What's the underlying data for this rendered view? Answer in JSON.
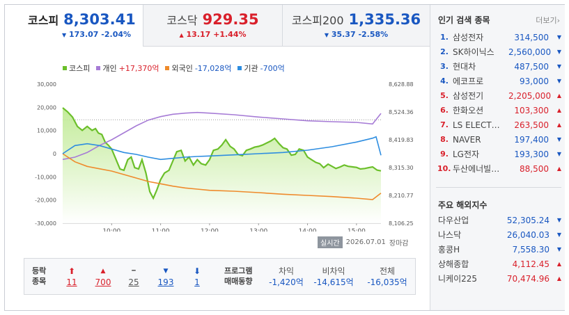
{
  "tabs": [
    {
      "name": "코스피",
      "value": "8,303.41",
      "arrow": "▼",
      "change": "173.07",
      "pct": "-2.04%",
      "color": "#1957c1"
    },
    {
      "name": "코스닥",
      "value": "929.35",
      "arrow": "▲",
      "change": "13.17",
      "pct": "+1.44%",
      "color": "#d9202b"
    },
    {
      "name": "코스피200",
      "value": "1,335.36",
      "arrow": "▼",
      "change": "35.37",
      "pct": "-2.58%",
      "color": "#1957c1"
    }
  ],
  "legend": [
    {
      "label": "코스피",
      "value": "",
      "color": "#6bbf2a"
    },
    {
      "label": "개인",
      "value": "+17,370억",
      "color": "#a67bd6",
      "value_color": "#d9202b"
    },
    {
      "label": "외국인",
      "value": "-17,028억",
      "color": "#ef8a2b",
      "value_color": "#1957c1"
    },
    {
      "label": "기관",
      "value": "-700억",
      "color": "#2d8de0",
      "value_color": "#1957c1"
    }
  ],
  "chart_data": {
    "type": "line",
    "y_left_ticks": [
      "30,000",
      "20,000",
      "10,000",
      "0",
      "-10,000",
      "-20,000",
      "-30,000"
    ],
    "y_left_range": [
      -30000,
      30000
    ],
    "y_right_ticks": [
      "8,628.88",
      "8,524.36",
      "8,419.83",
      "8,315.30",
      "8,210.77",
      "8,106.25"
    ],
    "y_right_range": [
      8106.25,
      8628.88
    ],
    "x_ticks": [
      "10:00",
      "11:00",
      "12:00",
      "13:00",
      "14:00",
      "15:00"
    ],
    "x_range_hours": [
      9.0,
      15.5
    ],
    "x_tick_hours": [
      10,
      11,
      12,
      13,
      14,
      15
    ],
    "reference_line_right": 8495,
    "series": [
      {
        "name": "코스피",
        "axis": "right",
        "color": "#6bbf2a",
        "x": [
          9.0,
          9.1,
          9.2,
          9.3,
          9.4,
          9.5,
          9.6,
          9.67,
          9.73,
          9.8,
          9.87,
          9.93,
          10.0,
          10.08,
          10.17,
          10.25,
          10.33,
          10.4,
          10.47,
          10.55,
          10.62,
          10.7,
          10.78,
          10.85,
          10.92,
          11.0,
          11.08,
          11.17,
          11.25,
          11.33,
          11.42,
          11.5,
          11.58,
          11.67,
          11.75,
          11.83,
          11.92,
          12.0,
          12.08,
          12.17,
          12.25,
          12.33,
          12.42,
          12.5,
          12.58,
          12.67,
          12.75,
          12.83,
          12.92,
          13.0,
          13.08,
          13.17,
          13.25,
          13.33,
          13.42,
          13.5,
          13.58,
          13.67,
          13.75,
          13.83,
          13.92,
          14.0,
          14.08,
          14.17,
          14.25,
          14.33,
          14.42,
          14.5,
          14.58,
          14.67,
          14.75,
          14.83,
          14.92,
          15.0,
          15.08,
          15.17,
          15.25,
          15.33,
          15.42,
          15.5
        ],
        "y": [
          8540,
          8525,
          8505,
          8470,
          8455,
          8470,
          8455,
          8462,
          8445,
          8440,
          8410,
          8400,
          8385,
          8350,
          8310,
          8305,
          8345,
          8355,
          8315,
          8310,
          8345,
          8295,
          8225,
          8200,
          8230,
          8270,
          8295,
          8305,
          8340,
          8375,
          8380,
          8340,
          8355,
          8325,
          8345,
          8330,
          8325,
          8345,
          8380,
          8385,
          8400,
          8420,
          8395,
          8385,
          8365,
          8360,
          8380,
          8385,
          8392,
          8395,
          8400,
          8408,
          8415,
          8425,
          8405,
          8390,
          8385,
          8362,
          8365,
          8385,
          8380,
          8355,
          8345,
          8335,
          8330,
          8315,
          8328,
          8320,
          8312,
          8318,
          8325,
          8320,
          8318,
          8316,
          8310,
          8312,
          8315,
          8318,
          8306,
          8303
        ]
      },
      {
        "name": "개인",
        "axis": "left",
        "color": "#a67bd6",
        "x": [
          9.0,
          9.25,
          9.5,
          9.75,
          10.0,
          10.25,
          10.5,
          10.75,
          11.0,
          11.25,
          11.5,
          11.75,
          12.0,
          12.5,
          13.0,
          13.5,
          14.0,
          14.5,
          15.0,
          15.33,
          15.5
        ],
        "y": [
          -2500,
          -1500,
          500,
          3500,
          6000,
          9000,
          12000,
          14500,
          16000,
          17000,
          17500,
          17800,
          17500,
          16800,
          15800,
          15000,
          14200,
          13800,
          13500,
          12800,
          17370
        ]
      },
      {
        "name": "외국인",
        "axis": "left",
        "color": "#ef8a2b",
        "x": [
          9.0,
          9.25,
          9.5,
          9.75,
          10.0,
          10.25,
          10.5,
          10.75,
          11.0,
          11.25,
          11.5,
          11.75,
          12.0,
          12.5,
          13.0,
          13.5,
          14.0,
          14.5,
          15.0,
          15.33,
          15.5
        ],
        "y": [
          0,
          -3500,
          -5500,
          -6500,
          -7500,
          -9000,
          -10500,
          -12000,
          -13000,
          -14000,
          -14800,
          -15300,
          -15800,
          -16200,
          -16800,
          -17500,
          -18000,
          -18500,
          -19200,
          -19800,
          -17028
        ]
      },
      {
        "name": "기관",
        "axis": "left",
        "color": "#2d8de0",
        "x": [
          9.0,
          9.25,
          9.5,
          9.75,
          10.0,
          10.25,
          10.5,
          10.75,
          11.0,
          11.25,
          11.5,
          11.75,
          12.0,
          12.5,
          13.0,
          13.5,
          14.0,
          14.5,
          15.0,
          15.33,
          15.4,
          15.5
        ],
        "y": [
          0,
          3500,
          4300,
          3500,
          2000,
          500,
          -300,
          -1500,
          -2500,
          -2000,
          -1500,
          -1200,
          -1000,
          -500,
          0,
          500,
          1500,
          3000,
          5000,
          6700,
          7300,
          -700
        ]
      }
    ]
  },
  "stamp": {
    "badge": "실시간",
    "date": "2026.07.01",
    "status": "장마감"
  },
  "breadth": {
    "header_line1": "등락",
    "header_line2": "종목",
    "items": [
      {
        "arrow": "⬆",
        "count": "11",
        "color": "#d9202b"
      },
      {
        "arrow": "▲",
        "count": "700",
        "color": "#d9202b"
      },
      {
        "arrow": "━",
        "count": "25",
        "color": "#555555"
      },
      {
        "arrow": "▼",
        "count": "193",
        "color": "#1957c1"
      },
      {
        "arrow": "⬇",
        "count": "1",
        "color": "#1957c1"
      }
    ]
  },
  "program": {
    "header_line1": "프로그램",
    "header_line2": "매매동향",
    "items": [
      {
        "label": "차익",
        "value": "-1,420억"
      },
      {
        "label": "비차익",
        "value": "-14,615억"
      },
      {
        "label": "전체",
        "value": "-16,035억"
      }
    ]
  },
  "popular": {
    "title": "인기 검색 종목",
    "more": "더보기",
    "items": [
      {
        "rank": "1.",
        "name": "삼성전자",
        "price": "314,500",
        "dir": "down"
      },
      {
        "rank": "2.",
        "name": "SK하이닉스",
        "price": "2,560,000",
        "dir": "down"
      },
      {
        "rank": "3.",
        "name": "현대차",
        "price": "487,500",
        "dir": "down"
      },
      {
        "rank": "4.",
        "name": "에코프로",
        "price": "93,000",
        "dir": "down"
      },
      {
        "rank": "5.",
        "name": "삼성전기",
        "price": "2,205,000",
        "dir": "up"
      },
      {
        "rank": "6.",
        "name": "한화오션",
        "price": "103,300",
        "dir": "up"
      },
      {
        "rank": "7.",
        "name": "LS ELECT…",
        "price": "263,500",
        "dir": "up"
      },
      {
        "rank": "8.",
        "name": "NAVER",
        "price": "197,400",
        "dir": "down"
      },
      {
        "rank": "9.",
        "name": "LG전자",
        "price": "193,300",
        "dir": "down"
      },
      {
        "rank": "10.",
        "name": "두산에너빌…",
        "price": "88,500",
        "dir": "up"
      }
    ]
  },
  "world": {
    "title": "주요 해외지수",
    "items": [
      {
        "name": "다우산업",
        "value": "52,305.24",
        "dir": "down"
      },
      {
        "name": "나스닥",
        "value": "26,040.03",
        "dir": "down"
      },
      {
        "name": "홍콩H",
        "value": "7,558.30",
        "dir": "down"
      },
      {
        "name": "상해종합",
        "value": "4,112.45",
        "dir": "up"
      },
      {
        "name": "니케이225",
        "value": "70,474.96",
        "dir": "up"
      }
    ]
  },
  "colors": {
    "up": "#d9202b",
    "down": "#1957c1",
    "up_arrow": "▲",
    "down_arrow": "▼"
  }
}
